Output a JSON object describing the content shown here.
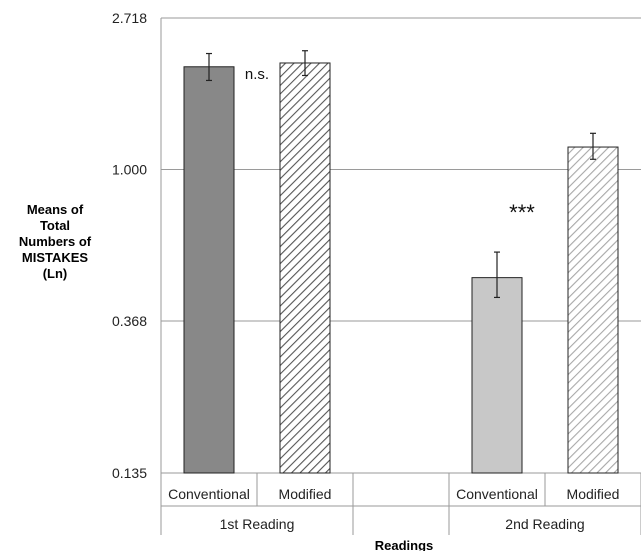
{
  "chart_data": {
    "type": "bar",
    "ylabel_lines": [
      "Means of",
      "Total",
      "Numbers of",
      "MISTAKES",
      "(Ln)"
    ],
    "xlabel": "Readings",
    "y_scale": "log",
    "ylim": [
      0.135,
      2.718
    ],
    "y_ticks": [
      "2.718",
      "1.000",
      "0.368",
      "0.135"
    ],
    "y_tick_values": [
      2.718,
      1.0,
      0.368,
      0.135
    ],
    "grid": true,
    "groups": [
      {
        "label": "1st Reading",
        "bars": [
          {
            "category": "Conventional",
            "value": 1.97,
            "err_low": 1.8,
            "err_high": 2.15,
            "fill": "solid",
            "color": "#888888"
          },
          {
            "category": "Modified",
            "value": 2.02,
            "err_low": 1.86,
            "err_high": 2.19,
            "fill": "hatch",
            "color": "#555555"
          }
        ],
        "annotation": "n.s."
      },
      {
        "label": "2nd Reading",
        "bars": [
          {
            "category": "Conventional",
            "value": 0.49,
            "err_low": 0.43,
            "err_high": 0.58,
            "fill": "solid",
            "color": "#c8c8c8"
          },
          {
            "category": "Modified",
            "value": 1.16,
            "err_low": 1.07,
            "err_high": 1.27,
            "fill": "hatch",
            "color": "#a8a8a8"
          }
        ],
        "annotation": "***"
      }
    ]
  }
}
